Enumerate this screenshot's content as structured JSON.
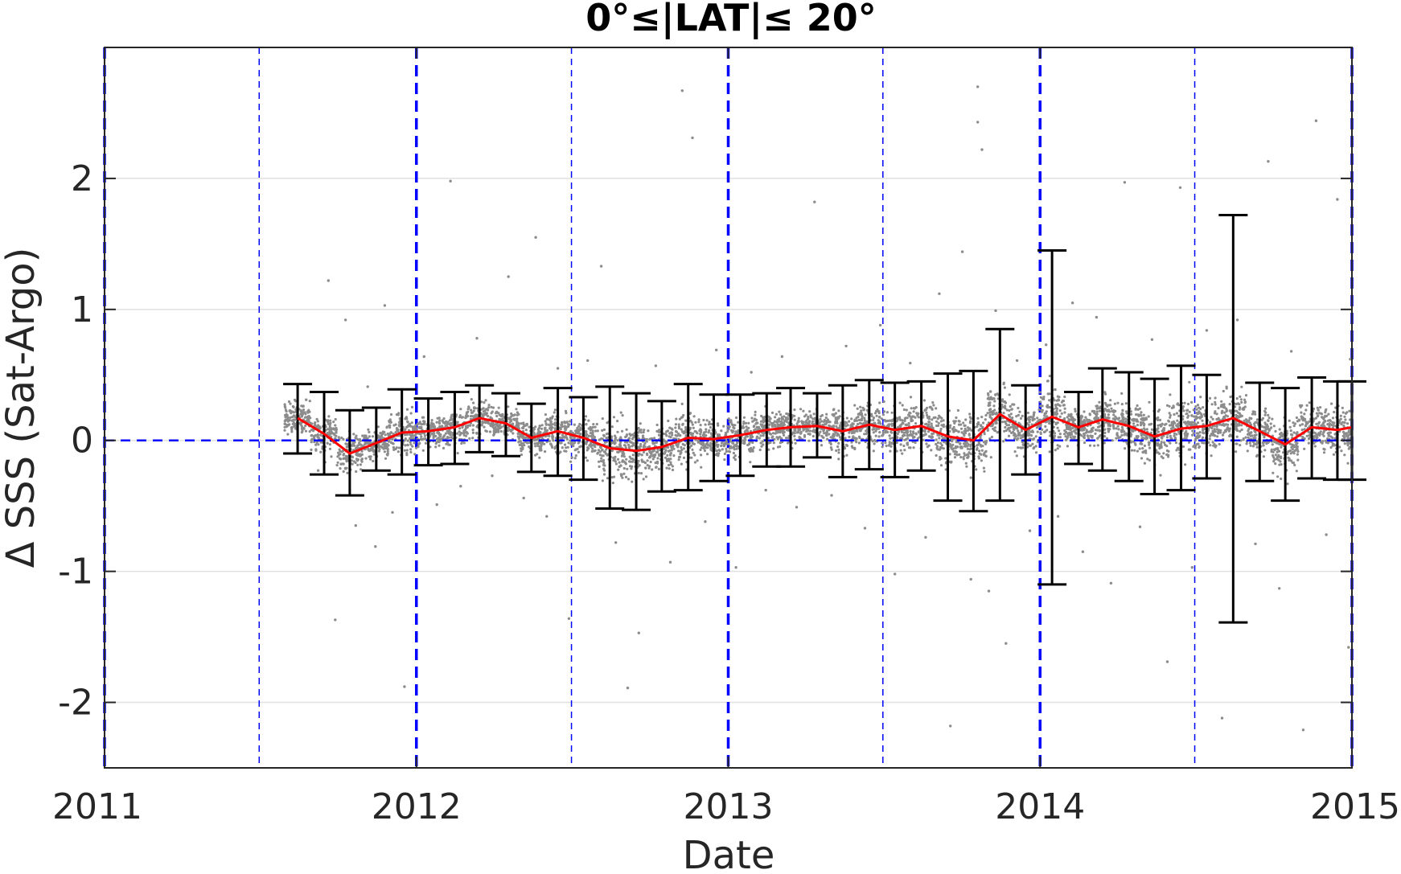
{
  "chart_data": {
    "type": "scatter",
    "title": "0°≤|LAT|≤ 20°",
    "xlabel": "Date",
    "ylabel": "Δ SSS (Sat-Argo)",
    "xlim": [
      "2011",
      "2015"
    ],
    "ylim": [
      -2.5,
      3
    ],
    "x_ticks": [
      "2011",
      "2012",
      "2013",
      "2014",
      "2015"
    ],
    "y_ticks": [
      -2,
      -1,
      0,
      1,
      2
    ],
    "grid": "horizontal",
    "reference_line": {
      "y": 0,
      "style": "dashed",
      "color": "#0000ff"
    },
    "vertical_markers": {
      "major": [
        "2011",
        "2012",
        "2013",
        "2014",
        "2015"
      ],
      "minor": [
        "2011-07",
        "2012-07",
        "2013-07",
        "2014-07"
      ],
      "color": "#0000ff",
      "style": "dashed"
    },
    "series": [
      {
        "style": "line-with-errorbars",
        "color": "#ff0000",
        "errorbar_color": "#000000",
        "points": [
          {
            "x": "2011-08-15",
            "y": 0.17,
            "low": -0.1,
            "high": 0.43
          },
          {
            "x": "2011-09-15",
            "y": 0.05,
            "low": -0.26,
            "high": 0.37
          },
          {
            "x": "2011-10-15",
            "y": -0.1,
            "low": -0.42,
            "high": 0.23
          },
          {
            "x": "2011-11-15",
            "y": -0.02,
            "low": -0.23,
            "high": 0.25
          },
          {
            "x": "2011-12-15",
            "y": 0.06,
            "low": -0.26,
            "high": 0.39
          },
          {
            "x": "2012-01-15",
            "y": 0.07,
            "low": -0.19,
            "high": 0.32
          },
          {
            "x": "2012-02-15",
            "y": 0.1,
            "low": -0.18,
            "high": 0.37
          },
          {
            "x": "2012-03-15",
            "y": 0.17,
            "low": -0.09,
            "high": 0.42
          },
          {
            "x": "2012-04-15",
            "y": 0.13,
            "low": -0.12,
            "high": 0.36
          },
          {
            "x": "2012-05-15",
            "y": 0.02,
            "low": -0.24,
            "high": 0.28
          },
          {
            "x": "2012-06-15",
            "y": 0.07,
            "low": -0.27,
            "high": 0.4
          },
          {
            "x": "2012-07-15",
            "y": 0.02,
            "low": -0.3,
            "high": 0.33
          },
          {
            "x": "2012-08-15",
            "y": -0.06,
            "low": -0.52,
            "high": 0.41
          },
          {
            "x": "2012-09-15",
            "y": -0.08,
            "low": -0.53,
            "high": 0.36
          },
          {
            "x": "2012-10-15",
            "y": -0.05,
            "low": -0.39,
            "high": 0.3
          },
          {
            "x": "2012-11-15",
            "y": 0.02,
            "low": -0.38,
            "high": 0.43
          },
          {
            "x": "2012-12-15",
            "y": 0.01,
            "low": -0.31,
            "high": 0.35
          },
          {
            "x": "2013-01-15",
            "y": 0.04,
            "low": -0.27,
            "high": 0.35
          },
          {
            "x": "2013-02-15",
            "y": 0.08,
            "low": -0.2,
            "high": 0.36
          },
          {
            "x": "2013-03-15",
            "y": 0.1,
            "low": -0.2,
            "high": 0.4
          },
          {
            "x": "2013-04-15",
            "y": 0.11,
            "low": -0.13,
            "high": 0.36
          },
          {
            "x": "2013-05-15",
            "y": 0.07,
            "low": -0.28,
            "high": 0.42
          },
          {
            "x": "2013-06-15",
            "y": 0.12,
            "low": -0.22,
            "high": 0.46
          },
          {
            "x": "2013-07-15",
            "y": 0.08,
            "low": -0.28,
            "high": 0.44
          },
          {
            "x": "2013-08-15",
            "y": 0.11,
            "low": -0.23,
            "high": 0.45
          },
          {
            "x": "2013-09-15",
            "y": 0.03,
            "low": -0.46,
            "high": 0.51
          },
          {
            "x": "2013-10-15",
            "y": 0.0,
            "low": -0.54,
            "high": 0.53
          },
          {
            "x": "2013-11-15",
            "y": 0.2,
            "low": -0.46,
            "high": 0.85
          },
          {
            "x": "2013-12-15",
            "y": 0.08,
            "low": -0.26,
            "high": 0.42
          },
          {
            "x": "2014-01-15",
            "y": 0.18,
            "low": -1.1,
            "high": 1.45
          },
          {
            "x": "2014-02-15",
            "y": 0.1,
            "low": -0.18,
            "high": 0.37
          },
          {
            "x": "2014-03-15",
            "y": 0.16,
            "low": -0.23,
            "high": 0.55
          },
          {
            "x": "2014-04-15",
            "y": 0.11,
            "low": -0.31,
            "high": 0.52
          },
          {
            "x": "2014-05-15",
            "y": 0.03,
            "low": -0.41,
            "high": 0.47
          },
          {
            "x": "2014-06-15",
            "y": 0.09,
            "low": -0.38,
            "high": 0.57
          },
          {
            "x": "2014-07-15",
            "y": 0.11,
            "low": -0.29,
            "high": 0.5
          },
          {
            "x": "2014-08-15",
            "y": 0.17,
            "low": -1.39,
            "high": 1.72
          },
          {
            "x": "2014-09-15",
            "y": 0.07,
            "low": -0.31,
            "high": 0.44
          },
          {
            "x": "2014-10-15",
            "y": -0.03,
            "low": -0.46,
            "high": 0.4
          },
          {
            "x": "2014-11-15",
            "y": 0.1,
            "low": -0.29,
            "high": 0.48
          },
          {
            "x": "2014-12-15",
            "y": 0.08,
            "low": -0.3,
            "high": 0.45
          },
          {
            "x": "2015-01-01",
            "y": 0.1,
            "low": -0.3,
            "high": 0.45
          }
        ]
      },
      {
        "style": "scatter",
        "color": "#808080",
        "spread": "individual match-ups scattered mostly between -0.5 and 0.6 around the monthly means, with outliers reaching about 2.7 and -2.3"
      }
    ]
  },
  "scatter_samples": [
    [
      "2011-08-25",
      0.31
    ],
    [
      "2011-09-08",
      -0.23
    ],
    [
      "2011-09-20",
      1.22
    ],
    [
      "2011-09-28",
      -1.37
    ],
    [
      "2011-10-10",
      0.92
    ],
    [
      "2011-10-22",
      -0.65
    ],
    [
      "2011-11-05",
      0.41
    ],
    [
      "2011-11-14",
      -0.81
    ],
    [
      "2011-11-25",
      1.03
    ],
    [
      "2011-12-04",
      -0.55
    ],
    [
      "2011-12-18",
      -1.88
    ],
    [
      "2012-01-10",
      0.64
    ],
    [
      "2012-01-25",
      -0.49
    ],
    [
      "2012-02-10",
      1.98
    ],
    [
      "2012-02-22",
      -0.35
    ],
    [
      "2012-03-12",
      0.78
    ],
    [
      "2012-03-30",
      -0.27
    ],
    [
      "2012-04-18",
      1.25
    ],
    [
      "2012-05-06",
      -0.44
    ],
    [
      "2012-05-20",
      1.55
    ],
    [
      "2012-06-02",
      -0.58
    ],
    [
      "2012-06-15",
      0.55
    ],
    [
      "2012-06-28",
      -1.36
    ],
    [
      "2012-07-20",
      0.61
    ],
    [
      "2012-08-05",
      1.33
    ],
    [
      "2012-08-22",
      -0.78
    ],
    [
      "2012-09-05",
      -1.89
    ],
    [
      "2012-09-18",
      -1.47
    ],
    [
      "2012-10-08",
      0.57
    ],
    [
      "2012-10-25",
      -0.93
    ],
    [
      "2012-11-08",
      2.67
    ],
    [
      "2012-11-20",
      2.31
    ],
    [
      "2012-12-05",
      -0.62
    ],
    [
      "2012-12-18",
      0.69
    ],
    [
      "2013-01-10",
      -0.97
    ],
    [
      "2013-01-28",
      0.52
    ],
    [
      "2013-02-14",
      -0.38
    ],
    [
      "2013-03-05",
      0.64
    ],
    [
      "2013-03-22",
      -0.51
    ],
    [
      "2013-04-12",
      1.82
    ],
    [
      "2013-05-02",
      -0.42
    ],
    [
      "2013-05-19",
      0.72
    ],
    [
      "2013-06-10",
      -0.67
    ],
    [
      "2013-06-28",
      0.88
    ],
    [
      "2013-07-15",
      -1.02
    ],
    [
      "2013-08-02",
      0.59
    ],
    [
      "2013-08-20",
      -0.74
    ],
    [
      "2013-09-05",
      1.12
    ],
    [
      "2013-09-18",
      -2.18
    ],
    [
      "2013-10-02",
      1.44
    ],
    [
      "2013-10-12",
      -1.06
    ],
    [
      "2013-10-20",
      2.43
    ],
    [
      "2013-10-20",
      2.7
    ],
    [
      "2013-10-25",
      2.22
    ],
    [
      "2013-11-02",
      -1.15
    ],
    [
      "2013-11-10",
      0.99
    ],
    [
      "2013-11-22",
      -1.55
    ],
    [
      "2013-12-05",
      0.61
    ],
    [
      "2013-12-20",
      -0.69
    ],
    [
      "2014-01-08",
      0.73
    ],
    [
      "2014-01-22",
      -0.58
    ],
    [
      "2014-02-08",
      1.05
    ],
    [
      "2014-02-20",
      -0.85
    ],
    [
      "2014-03-08",
      0.94
    ],
    [
      "2014-03-25",
      -1.09
    ],
    [
      "2014-04-10",
      1.97
    ],
    [
      "2014-04-28",
      -0.66
    ],
    [
      "2014-05-12",
      0.77
    ],
    [
      "2014-05-30",
      -1.69
    ],
    [
      "2014-06-14",
      1.93
    ],
    [
      "2014-06-28",
      -0.97
    ],
    [
      "2014-07-15",
      0.84
    ],
    [
      "2014-08-02",
      -2.12
    ],
    [
      "2014-08-20",
      0.92
    ],
    [
      "2014-09-10",
      -0.79
    ],
    [
      "2014-09-25",
      2.13
    ],
    [
      "2014-10-08",
      -1.13
    ],
    [
      "2014-10-22",
      0.68
    ],
    [
      "2014-11-05",
      -2.21
    ],
    [
      "2014-11-20",
      2.44
    ],
    [
      "2014-12-02",
      -0.72
    ],
    [
      "2014-12-15",
      1.84
    ],
    [
      "2014-12-28",
      -1.58
    ],
    [
      "2014-12-30",
      0.62
    ]
  ]
}
